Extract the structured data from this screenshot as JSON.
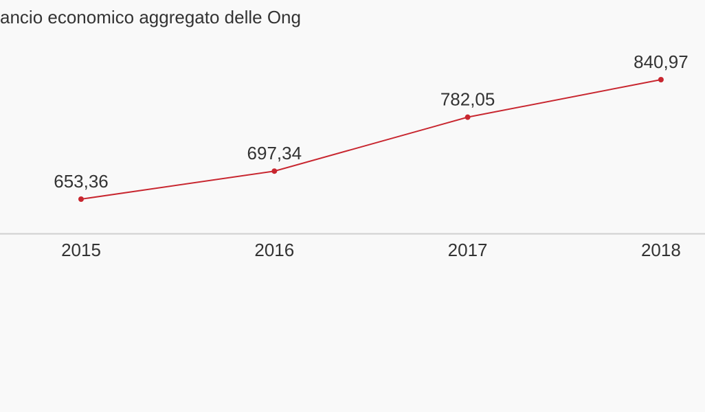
{
  "chart_data": {
    "type": "line",
    "title": "ancio economico aggregato delle Ong",
    "categories": [
      "2015",
      "2016",
      "2017",
      "2018"
    ],
    "series": [
      {
        "color": "#c8262f",
        "values": [
          653.36,
          697.34,
          782.05,
          840.97
        ],
        "value_labels": [
          "653,36",
          "697,34",
          "782,05",
          "840,97"
        ]
      }
    ]
  }
}
